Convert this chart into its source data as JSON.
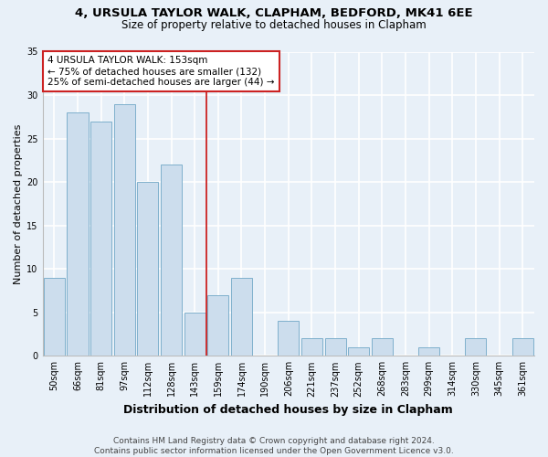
{
  "title1": "4, URSULA TAYLOR WALK, CLAPHAM, BEDFORD, MK41 6EE",
  "title2": "Size of property relative to detached houses in Clapham",
  "xlabel": "Distribution of detached houses by size in Clapham",
  "ylabel": "Number of detached properties",
  "bin_labels": [
    "50sqm",
    "66sqm",
    "81sqm",
    "97sqm",
    "112sqm",
    "128sqm",
    "143sqm",
    "159sqm",
    "174sqm",
    "190sqm",
    "206sqm",
    "221sqm",
    "237sqm",
    "252sqm",
    "268sqm",
    "283sqm",
    "299sqm",
    "314sqm",
    "330sqm",
    "345sqm",
    "361sqm"
  ],
  "bar_heights": [
    9,
    28,
    27,
    29,
    20,
    22,
    5,
    7,
    9,
    0,
    4,
    2,
    2,
    1,
    2,
    0,
    1,
    0,
    2,
    0,
    2
  ],
  "bar_color": "#ccdded",
  "bar_edgecolor": "#7fb0cc",
  "vline_x_index": 7,
  "vline_label": "4 URSULA TAYLOR WALK: 153sqm",
  "annotation_line2": "← 75% of detached houses are smaller (132)",
  "annotation_line3": "25% of semi-detached houses are larger (44) →",
  "annotation_box_edgecolor": "#cc2222",
  "vline_color": "#cc2222",
  "ylim": [
    0,
    35
  ],
  "yticks": [
    0,
    5,
    10,
    15,
    20,
    25,
    30,
    35
  ],
  "footer1": "Contains HM Land Registry data © Crown copyright and database right 2024.",
  "footer2": "Contains public sector information licensed under the Open Government Licence v3.0.",
  "bg_color": "#e8f0f8",
  "plot_bg_color": "#e8f0f8",
  "grid_color": "#ffffff",
  "title1_fontsize": 9.5,
  "title2_fontsize": 8.5,
  "xlabel_fontsize": 9,
  "ylabel_fontsize": 8,
  "tick_fontsize": 7,
  "footer_fontsize": 6.5,
  "annotation_fontsize": 7.5
}
